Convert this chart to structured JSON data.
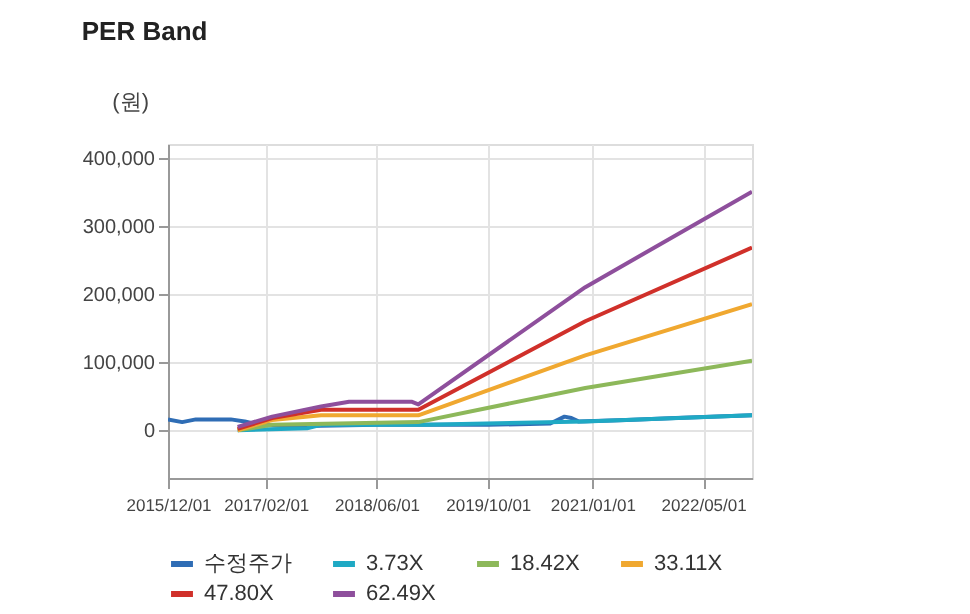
{
  "chart_data": {
    "type": "line",
    "title": "PER Band",
    "ylabel": "(원)",
    "xlim": [
      "2015-12-01",
      "2022-12-01"
    ],
    "xticks": [
      {
        "value": "2015-12-01",
        "label": "2015/12/01"
      },
      {
        "value": "2017-02-01",
        "label": "2017/02/01"
      },
      {
        "value": "2018-06-01",
        "label": "2018/06/01"
      },
      {
        "value": "2019-10-01",
        "label": "2019/10/01"
      },
      {
        "value": "2021-01-01",
        "label": "2021/01/01"
      },
      {
        "value": "2022-05-01",
        "label": "2022/05/01"
      }
    ],
    "ylim": [
      -70000,
      420000
    ],
    "yticks": [
      {
        "value": 0,
        "label": "0"
      },
      {
        "value": 100000,
        "label": "100,000"
      },
      {
        "value": 200000,
        "label": "200,000"
      },
      {
        "value": 300000,
        "label": "300,000"
      },
      {
        "value": 400000,
        "label": "400,000"
      }
    ],
    "grid": true,
    "legend": "bottom",
    "marker": "none",
    "line_style": "solid",
    "series": [
      {
        "name": "수정주가",
        "color": "#2f6db5",
        "x": [
          "2015-12-01",
          "2016-02-01",
          "2016-04-01",
          "2016-09-01",
          "2016-11-01",
          "2017-01-01",
          "2017-06-01",
          "2018-06-01",
          "2019-10-01",
          "2020-07-01",
          "2020-09-01",
          "2020-10-01",
          "2020-11-01",
          "2021-06-01",
          "2022-01-01",
          "2022-12-01"
        ],
        "values": [
          16000,
          12000,
          16000,
          16000,
          13000,
          8000,
          6000,
          8000,
          8000,
          10000,
          20000,
          18000,
          13000,
          15000,
          18000,
          22000
        ]
      },
      {
        "name": "3.73X",
        "color": "#1fa9c4",
        "x": [
          "2016-10-01",
          "2017-08-01",
          "2017-10-01",
          "2019-01-01",
          "2020-12-01",
          "2022-12-01"
        ],
        "values": [
          0,
          3000,
          8000,
          8000,
          13000,
          22000
        ]
      },
      {
        "name": "18.42X",
        "color": "#8db85a",
        "x": [
          "2016-10-01",
          "2017-03-01",
          "2018-12-01",
          "2020-12-01",
          "2022-12-01"
        ],
        "values": [
          0,
          8000,
          12000,
          62000,
          102000
        ]
      },
      {
        "name": "33.11X",
        "color": "#f0a830",
        "x": [
          "2016-10-01",
          "2017-03-01",
          "2017-10-01",
          "2018-12-01",
          "2020-12-01",
          "2022-12-01"
        ],
        "values": [
          0,
          15000,
          22000,
          22000,
          110000,
          185000
        ]
      },
      {
        "name": "47.80X",
        "color": "#d0302a",
        "x": [
          "2016-10-01",
          "2017-03-01",
          "2017-10-01",
          "2018-12-01",
          "2020-12-01",
          "2022-12-01"
        ],
        "values": [
          2000,
          18000,
          30000,
          30000,
          160000,
          268000
        ]
      },
      {
        "name": "62.49X",
        "color": "#8e4f9c",
        "x": [
          "2016-10-01",
          "2017-03-01",
          "2017-10-01",
          "2018-02-01",
          "2018-11-01",
          "2018-12-01",
          "2020-12-01",
          "2022-12-01"
        ],
        "values": [
          5000,
          20000,
          35000,
          42000,
          42000,
          38000,
          210000,
          350000
        ]
      }
    ]
  }
}
